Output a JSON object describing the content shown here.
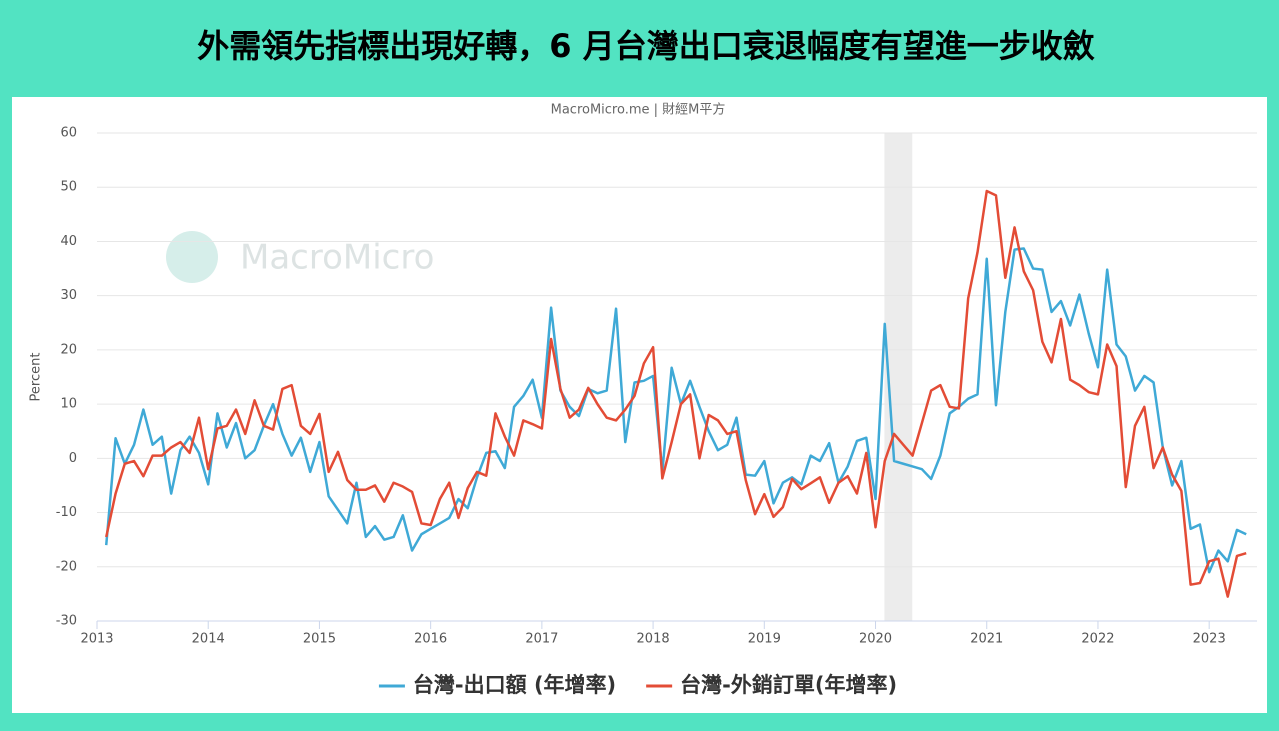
{
  "chart_data": {
    "type": "line",
    "title": "外需領先指標出現好轉，6 月台灣出口衰退幅度有望進一步收斂",
    "subtitle": "MacroMicro.me | 財經M平方",
    "watermark": "MacroMicro",
    "y_label": "Percent",
    "xlim": [
      2013,
      2023.43
    ],
    "xticks": [
      2013,
      2014,
      2015,
      2016,
      2017,
      2018,
      2019,
      2020,
      2021,
      2022,
      2023
    ],
    "ylim": [
      -30,
      60
    ],
    "yticks": [
      -30,
      -20,
      -10,
      0,
      10,
      20,
      30,
      40,
      50,
      60
    ],
    "grid": true,
    "legend": "bottom",
    "shaded_ranges": [
      [
        2020.08,
        2020.33
      ]
    ],
    "x": [
      2013.083,
      2013.167,
      2013.25,
      2013.333,
      2013.417,
      2013.5,
      2013.583,
      2013.667,
      2013.75,
      2013.833,
      2013.917,
      2014,
      2014.083,
      2014.167,
      2014.25,
      2014.333,
      2014.417,
      2014.5,
      2014.583,
      2014.667,
      2014.75,
      2014.833,
      2014.917,
      2015,
      2015.083,
      2015.167,
      2015.25,
      2015.333,
      2015.417,
      2015.5,
      2015.583,
      2015.667,
      2015.75,
      2015.833,
      2015.917,
      2016,
      2016.083,
      2016.167,
      2016.25,
      2016.333,
      2016.417,
      2016.5,
      2016.583,
      2016.667,
      2016.75,
      2016.833,
      2016.917,
      2017,
      2017.083,
      2017.167,
      2017.25,
      2017.333,
      2017.417,
      2017.5,
      2017.583,
      2017.667,
      2017.75,
      2017.833,
      2017.917,
      2018,
      2018.083,
      2018.167,
      2018.25,
      2018.333,
      2018.417,
      2018.5,
      2018.583,
      2018.667,
      2018.75,
      2018.833,
      2018.917,
      2019,
      2019.083,
      2019.167,
      2019.25,
      2019.333,
      2019.417,
      2019.5,
      2019.583,
      2019.667,
      2019.75,
      2019.833,
      2019.917,
      2020,
      2020.083,
      2020.167,
      2020.25,
      2020.333,
      2020.417,
      2020.5,
      2020.583,
      2020.667,
      2020.75,
      2020.833,
      2020.917,
      2021,
      2021.083,
      2021.167,
      2021.25,
      2021.333,
      2021.417,
      2021.5,
      2021.583,
      2021.667,
      2021.75,
      2021.833,
      2021.917,
      2022,
      2022.083,
      2022.167,
      2022.25,
      2022.333,
      2022.417,
      2022.5,
      2022.583,
      2022.667,
      2022.75,
      2022.833,
      2022.917,
      2023,
      2023.083,
      2023.167,
      2023.25,
      2023.333
    ],
    "series": [
      {
        "name": "台灣-出口額 (年增率)",
        "color": "#3fa9d6",
        "values": [
          -16,
          3.7,
          -1,
          2.5,
          9,
          2.5,
          4,
          -6.5,
          1.5,
          4,
          1,
          -4.8,
          8.3,
          2,
          6.5,
          0,
          1.5,
          6,
          10,
          4.5,
          0.5,
          3.8,
          -2.5,
          3,
          -7,
          -9.5,
          -12,
          -4.5,
          -14.5,
          -12.5,
          -15,
          -14.5,
          -10.5,
          -17,
          -14,
          -13,
          -12,
          -11,
          -7.5,
          -9.2,
          -3.5,
          1,
          1.3,
          -1.8,
          9.5,
          11.5,
          14.5,
          7.5,
          27.8,
          12.5,
          9.5,
          7.8,
          12.8,
          12,
          12.5,
          27.6,
          3,
          14,
          14.3,
          15.2,
          -2.5,
          16.7,
          10,
          14.3,
          9.5,
          5,
          1.5,
          2.5,
          7.5,
          -3,
          -3.2,
          -0.5,
          -8.3,
          -4.5,
          -3.5,
          -4.8,
          0.5,
          -0.5,
          2.8,
          -4.5,
          -1.5,
          3.2,
          3.8,
          -7.5,
          24.8,
          -0.5,
          -1,
          -1.5,
          -2,
          -3.8,
          0.5,
          8.3,
          9.5,
          11,
          11.8,
          36.8,
          9.8,
          27,
          38.5,
          38.7,
          35,
          34.8,
          27,
          29,
          24.5,
          30.2,
          23,
          16.8,
          34.8,
          21,
          18.8,
          12.5,
          15.2,
          14,
          2,
          -5,
          -0.5,
          -13,
          -12.2,
          -21,
          -17,
          -19,
          -13.2,
          -14
        ]
      },
      {
        "name": "台灣-外銷訂單(年增率)",
        "color": "#e34c36",
        "values": [
          -14.5,
          -6.5,
          -1,
          -0.5,
          -3.3,
          0.5,
          0.5,
          2,
          3,
          1,
          7.5,
          -2,
          5.5,
          6,
          9,
          4.5,
          10.7,
          6,
          5.3,
          12.8,
          13.5,
          6,
          4.5,
          8.2,
          -2.5,
          1.2,
          -4,
          -5.8,
          -5.8,
          -5,
          -8,
          -4.5,
          -5.2,
          -6.2,
          -12,
          -12.3,
          -7.5,
          -4.5,
          -11,
          -5.5,
          -2.5,
          -3.2,
          8.3,
          4,
          0.5,
          7,
          6.3,
          5.5,
          22,
          12.8,
          7.5,
          9,
          13,
          10,
          7.5,
          7,
          9,
          11.5,
          17.5,
          20.5,
          -3.7,
          3,
          10,
          11.8,
          0,
          8,
          7,
          4.5,
          5,
          -4,
          -10.3,
          -6.6,
          -10.8,
          -9,
          -3.8,
          -5.7,
          -4.6,
          -3.5,
          -8.2,
          -4.5,
          -3.3,
          -6.5,
          1,
          -12.7,
          -0.5,
          4.5,
          2.5,
          0.5,
          6.5,
          12.5,
          13.5,
          9.5,
          9.2,
          29.5,
          38,
          49.3,
          48.5,
          33.3,
          42.6,
          34.5,
          31,
          21.5,
          17.7,
          25.7,
          14.5,
          13.5,
          12.2,
          11.8,
          21,
          17,
          -5.3,
          6,
          9.5,
          -1.8,
          2,
          -3,
          -6,
          -23.3,
          -23,
          -19,
          -18.5,
          -25.5,
          -18,
          -17.5
        ]
      }
    ]
  }
}
